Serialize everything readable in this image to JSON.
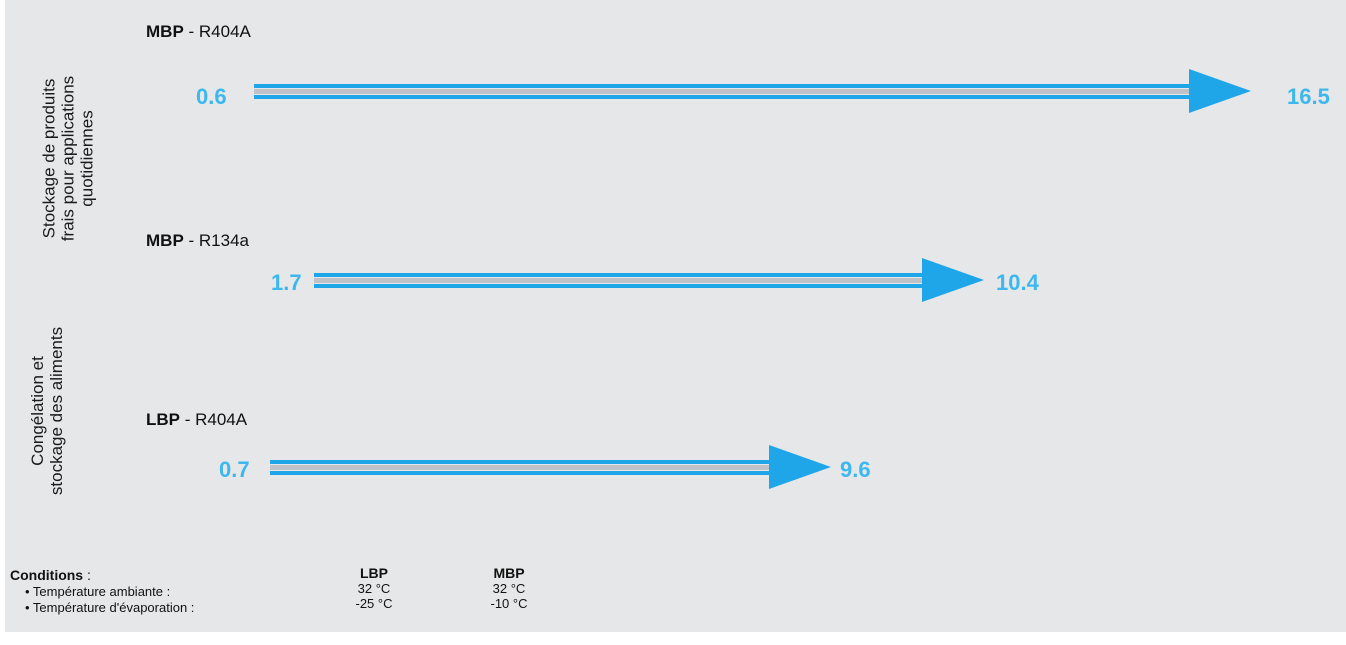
{
  "side_labels": {
    "top": [
      "Stockage de produits",
      "frais  pour applications",
      "quotidiennes"
    ],
    "bottom": [
      "Congélation et",
      "stockage des aliments"
    ]
  },
  "chart_data": {
    "type": "bar",
    "orientation": "horizontal-range",
    "rows": [
      {
        "bold": "MBP",
        "suffix": "  -  R404A",
        "min": 0.6,
        "max": 16.5,
        "min_label": "0.6",
        "max_label": "16.5"
      },
      {
        "bold": "MBP",
        "suffix": " - R134a",
        "min": 1.7,
        "max": 10.4,
        "min_label": "1.7",
        "max_label": "10.4"
      },
      {
        "bold": "LBP",
        "suffix": " - R404A",
        "min": 0.7,
        "max": 9.6,
        "min_label": "0.7",
        "max_label": "9.6"
      }
    ],
    "colors": {
      "arrow": "#1fa6e9",
      "stripe": "#bfc3c7",
      "value_text": "#3cb8ee"
    }
  },
  "conditions": {
    "title": "Conditions",
    "title_suffix": " :",
    "rows": [
      "•  Température ambiante :",
      "•  Température d'évaporation :"
    ],
    "columns": [
      {
        "header": "LBP",
        "values": [
          "32 °C",
          "-25 °C"
        ]
      },
      {
        "header": "MBP",
        "values": [
          "32 °C",
          "-10 °C"
        ]
      }
    ]
  }
}
